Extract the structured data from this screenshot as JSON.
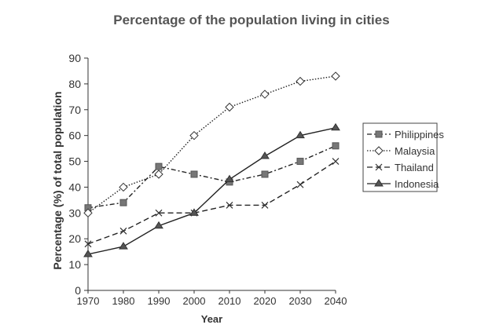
{
  "chart_data": {
    "type": "line",
    "title": "Percentage of the population living in cities",
    "xlabel": "Year",
    "ylabel": "Percentage (%) of total population",
    "x": [
      1970,
      1980,
      1990,
      2000,
      2010,
      2020,
      2030,
      2040
    ],
    "ylim": [
      0,
      90
    ],
    "yticks": [
      0,
      10,
      20,
      30,
      40,
      50,
      60,
      70,
      80,
      90
    ],
    "grid": false,
    "legend_position": "right",
    "series": [
      {
        "name": "Philippines",
        "marker": "square",
        "dash": "dash-dot",
        "values": [
          32,
          34,
          48,
          45,
          42,
          45,
          50,
          56
        ]
      },
      {
        "name": "Malaysia",
        "marker": "diamond",
        "dash": "dotted",
        "values": [
          30,
          40,
          45,
          60,
          71,
          76,
          81,
          83
        ]
      },
      {
        "name": "Thailand",
        "marker": "x",
        "dash": "dashed",
        "values": [
          18,
          23,
          30,
          30,
          33,
          33,
          41,
          50
        ]
      },
      {
        "name": "Indonesia",
        "marker": "triangle",
        "dash": "solid",
        "values": [
          14,
          17,
          25,
          30,
          43,
          52,
          60,
          63
        ]
      }
    ]
  }
}
